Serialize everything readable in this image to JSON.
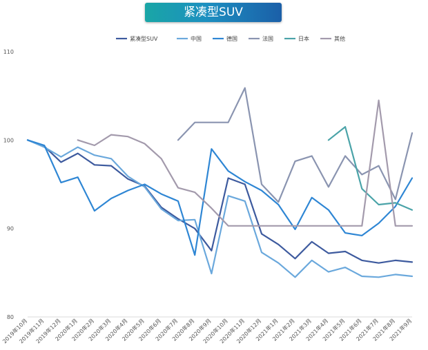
{
  "chart_data": {
    "type": "line",
    "title": "紧凑型SUV",
    "xlabel": "",
    "ylabel": "",
    "ylim": [
      80,
      110
    ],
    "yticks": [
      80,
      90,
      100,
      110
    ],
    "grid": false,
    "legend_position": "top",
    "categories": [
      "2019年10月",
      "2019年11月",
      "2019年12月",
      "2020年1月",
      "2020年2月",
      "2020年3月",
      "2020年4月",
      "2020年5月",
      "2020年6月",
      "2020年7月",
      "2020年8月",
      "2020年9月",
      "2020年10月",
      "2020年11月",
      "2020年12月",
      "2021年1月",
      "2021年2月",
      "2021年3月",
      "2021年4月",
      "2021年5月",
      "2021年6月",
      "2021年7月",
      "2021年8月",
      "2021年9月"
    ],
    "series": [
      {
        "name": "紧凑型SUV",
        "color": "#3d5a9e",
        "values": [
          100,
          99.3,
          97.5,
          98.5,
          97.2,
          97.1,
          95.6,
          94.8,
          92.4,
          91.1,
          90.0,
          87.5,
          95.7,
          95.0,
          89.4,
          88.2,
          86.6,
          88.5,
          87.2,
          87.4,
          86.4,
          86.1,
          86.4,
          86.2
        ]
      },
      {
        "name": "中国",
        "color": "#6aa8dc",
        "values": [
          100,
          99.2,
          98.1,
          99.2,
          98.3,
          97.9,
          95.9,
          94.7,
          92.2,
          90.9,
          91.0,
          84.9,
          93.7,
          93.1,
          87.3,
          86.1,
          84.5,
          86.4,
          85.1,
          85.6,
          84.6,
          84.5,
          84.8,
          84.6
        ]
      },
      {
        "name": "德国",
        "color": "#2e86d4",
        "values": [
          100,
          99.4,
          95.2,
          95.8,
          92.0,
          93.4,
          94.3,
          95.0,
          93.9,
          93.1,
          87.0,
          99.0,
          96.5,
          95.3,
          94.3,
          92.7,
          89.9,
          93.5,
          92.1,
          89.5,
          89.2,
          90.6,
          92.5,
          95.7
        ]
      },
      {
        "name": "法国",
        "color": "#8a94b0",
        "values": [
          null,
          null,
          null,
          null,
          null,
          null,
          null,
          null,
          null,
          100.0,
          102.0,
          102.0,
          102.0,
          105.9,
          95.0,
          93.0,
          97.6,
          98.2,
          94.7,
          98.2,
          96.1,
          97.1,
          93.3,
          100.8
        ]
      },
      {
        "name": "日本",
        "color": "#4aa3a8",
        "values": [
          null,
          null,
          null,
          null,
          null,
          null,
          null,
          null,
          null,
          null,
          null,
          null,
          null,
          null,
          null,
          null,
          null,
          null,
          100.0,
          101.5,
          94.5,
          92.7,
          92.9,
          92.1
        ]
      },
      {
        "name": "其他",
        "color": "#a39aac",
        "values": [
          null,
          null,
          null,
          100.0,
          99.4,
          100.6,
          100.4,
          99.6,
          97.9,
          94.6,
          94.1,
          92.3,
          90.3,
          90.3,
          90.3,
          90.3,
          90.3,
          90.3,
          90.3,
          90.3,
          90.3,
          104.5,
          90.3,
          90.3
        ]
      }
    ]
  }
}
